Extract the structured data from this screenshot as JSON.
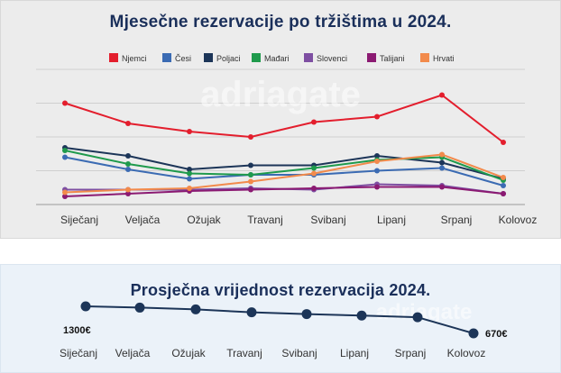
{
  "watermark": "adriagate",
  "chart_data": [
    {
      "type": "line",
      "title": "Mjesečne rezervacije po tržištima u 2024.",
      "categories": [
        "Siječanj",
        "Veljača",
        "Ožujak",
        "Travanj",
        "Svibanj",
        "Lipanj",
        "Srpanj",
        "Kolovoz"
      ],
      "ylim": [
        0,
        100
      ],
      "grid": true,
      "legend_position": "top",
      "series": [
        {
          "name": "Njemci",
          "color": "#e31e2d",
          "values": [
            75,
            60,
            54,
            50,
            61,
            65,
            81,
            46
          ]
        },
        {
          "name": "Česi",
          "color": "#3b6bb3",
          "values": [
            35,
            26,
            19,
            22,
            22,
            25,
            27,
            14
          ]
        },
        {
          "name": "Poljaci",
          "color": "#1c3558",
          "values": [
            42,
            36,
            26,
            29,
            29,
            36,
            31,
            19
          ]
        },
        {
          "name": "Mađari",
          "color": "#1f9a4c",
          "values": [
            40,
            30,
            23,
            22,
            27,
            33,
            35,
            18
          ]
        },
        {
          "name": "Slovenci",
          "color": "#7e4fa2",
          "values": [
            11,
            11,
            11,
            12,
            11,
            15,
            14,
            8
          ]
        },
        {
          "name": "Talijani",
          "color": "#8b1a72",
          "values": [
            6,
            8,
            10,
            11,
            12,
            13,
            13,
            8
          ]
        },
        {
          "name": "Hrvati",
          "color": "#f28a4b",
          "values": [
            9,
            11,
            12,
            17,
            23,
            32,
            37,
            20
          ]
        }
      ]
    },
    {
      "type": "line",
      "title": "Prosječna vrijednost rezervacija 2024.",
      "categories": [
        "Siječanj",
        "Veljača",
        "Ožujak",
        "Travanj",
        "Svibanj",
        "Lipanj",
        "Srpanj",
        "Kolovoz"
      ],
      "values": [
        1300,
        1270,
        1230,
        1160,
        1120,
        1085,
        1045,
        670
      ],
      "value_labels": {
        "first": "1300€",
        "last": "670€"
      },
      "ylim": [
        600,
        1400
      ],
      "color": "#1c3558"
    }
  ]
}
